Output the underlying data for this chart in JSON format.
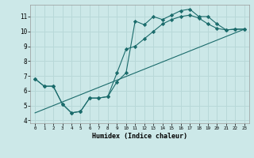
{
  "title": "",
  "xlabel": "Humidex (Indice chaleur)",
  "background_color": "#cce8e8",
  "grid_color": "#b8d8d8",
  "line_color": "#1a6b6b",
  "xlim": [
    -0.5,
    23.5
  ],
  "ylim": [
    3.8,
    11.8
  ],
  "xticks": [
    0,
    1,
    2,
    3,
    4,
    5,
    6,
    7,
    8,
    9,
    10,
    11,
    12,
    13,
    14,
    15,
    16,
    17,
    18,
    19,
    20,
    21,
    22,
    23
  ],
  "yticks": [
    4,
    5,
    6,
    7,
    8,
    9,
    10,
    11
  ],
  "line1_x": [
    0,
    1,
    2,
    3,
    4,
    5,
    6,
    7,
    8,
    9,
    10,
    11,
    12,
    13,
    14,
    15,
    16,
    17,
    18,
    19,
    20,
    21,
    22,
    23
  ],
  "line1_y": [
    6.8,
    6.3,
    6.3,
    5.1,
    4.5,
    4.6,
    5.5,
    5.5,
    5.6,
    6.6,
    7.2,
    10.7,
    10.45,
    11.0,
    10.8,
    11.1,
    11.4,
    11.5,
    11.0,
    11.0,
    10.5,
    10.1,
    10.15,
    10.15
  ],
  "line2_x": [
    0,
    1,
    2,
    3,
    4,
    5,
    6,
    7,
    8,
    9,
    10,
    11,
    12,
    13,
    14,
    15,
    16,
    17,
    18,
    19,
    20,
    21,
    22,
    23
  ],
  "line2_y": [
    6.8,
    6.3,
    6.3,
    5.1,
    4.5,
    4.6,
    5.5,
    5.5,
    5.6,
    7.2,
    8.8,
    9.0,
    9.5,
    10.0,
    10.5,
    10.8,
    11.0,
    11.1,
    10.9,
    10.5,
    10.2,
    10.1,
    10.15,
    10.15
  ],
  "line3_x": [
    0,
    23
  ],
  "line3_y": [
    4.5,
    10.15
  ]
}
